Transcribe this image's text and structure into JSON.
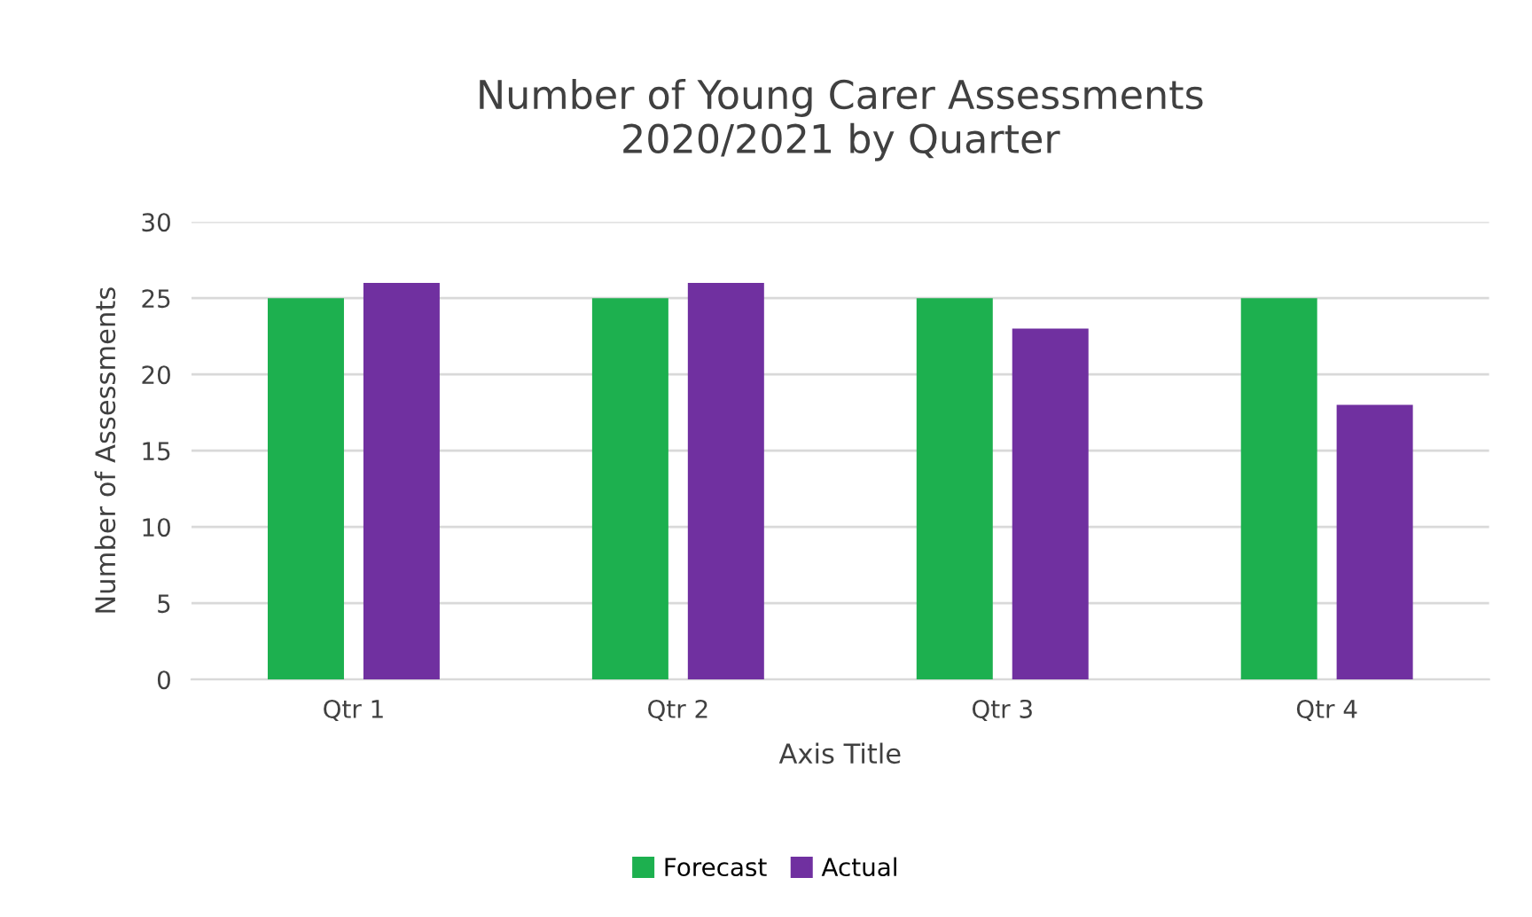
{
  "chart_data": {
    "type": "bar",
    "title": "Number of Young Carer Assessments\n2020/2021 by Quarter",
    "xlabel": "Axis Title",
    "ylabel": "Number of Assessments",
    "categories": [
      "Qtr 1",
      "Qtr 2",
      "Qtr 3",
      "Qtr 4"
    ],
    "series": [
      {
        "name": "Forecast",
        "color": "#1db04f",
        "values": [
          25,
          25,
          25,
          25
        ]
      },
      {
        "name": "Actual",
        "color": "#7030a0",
        "values": [
          26,
          26,
          23,
          18
        ]
      }
    ],
    "ylim": [
      0,
      30
    ],
    "yticks": [
      0,
      5,
      10,
      15,
      20,
      25,
      30
    ],
    "grid": "y",
    "legend": "bottom"
  }
}
